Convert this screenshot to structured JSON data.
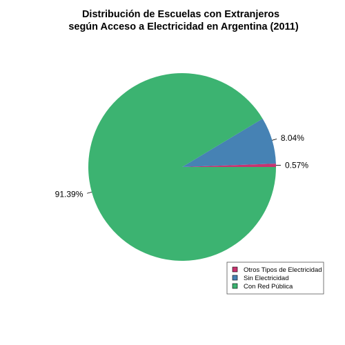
{
  "chart_data": {
    "type": "pie",
    "title_lines": [
      "Distribución de Escuelas con Extranjeros",
      "según Acceso a Electricidad en Argentina (2011)"
    ],
    "slices": [
      {
        "name": "Otros Tipos de Electricidad",
        "value": 0.57,
        "label": "0.57%",
        "color": "#C8336F"
      },
      {
        "name": "Sin Electricidad",
        "value": 8.04,
        "label": "8.04%",
        "color": "#4682B4"
      },
      {
        "name": "Con Red Pública",
        "value": 91.39,
        "label": "91.39%",
        "color": "#3CB371"
      }
    ],
    "start_angle_deg": 0,
    "direction": "counterclockwise",
    "legend_position": "bottom-right"
  }
}
